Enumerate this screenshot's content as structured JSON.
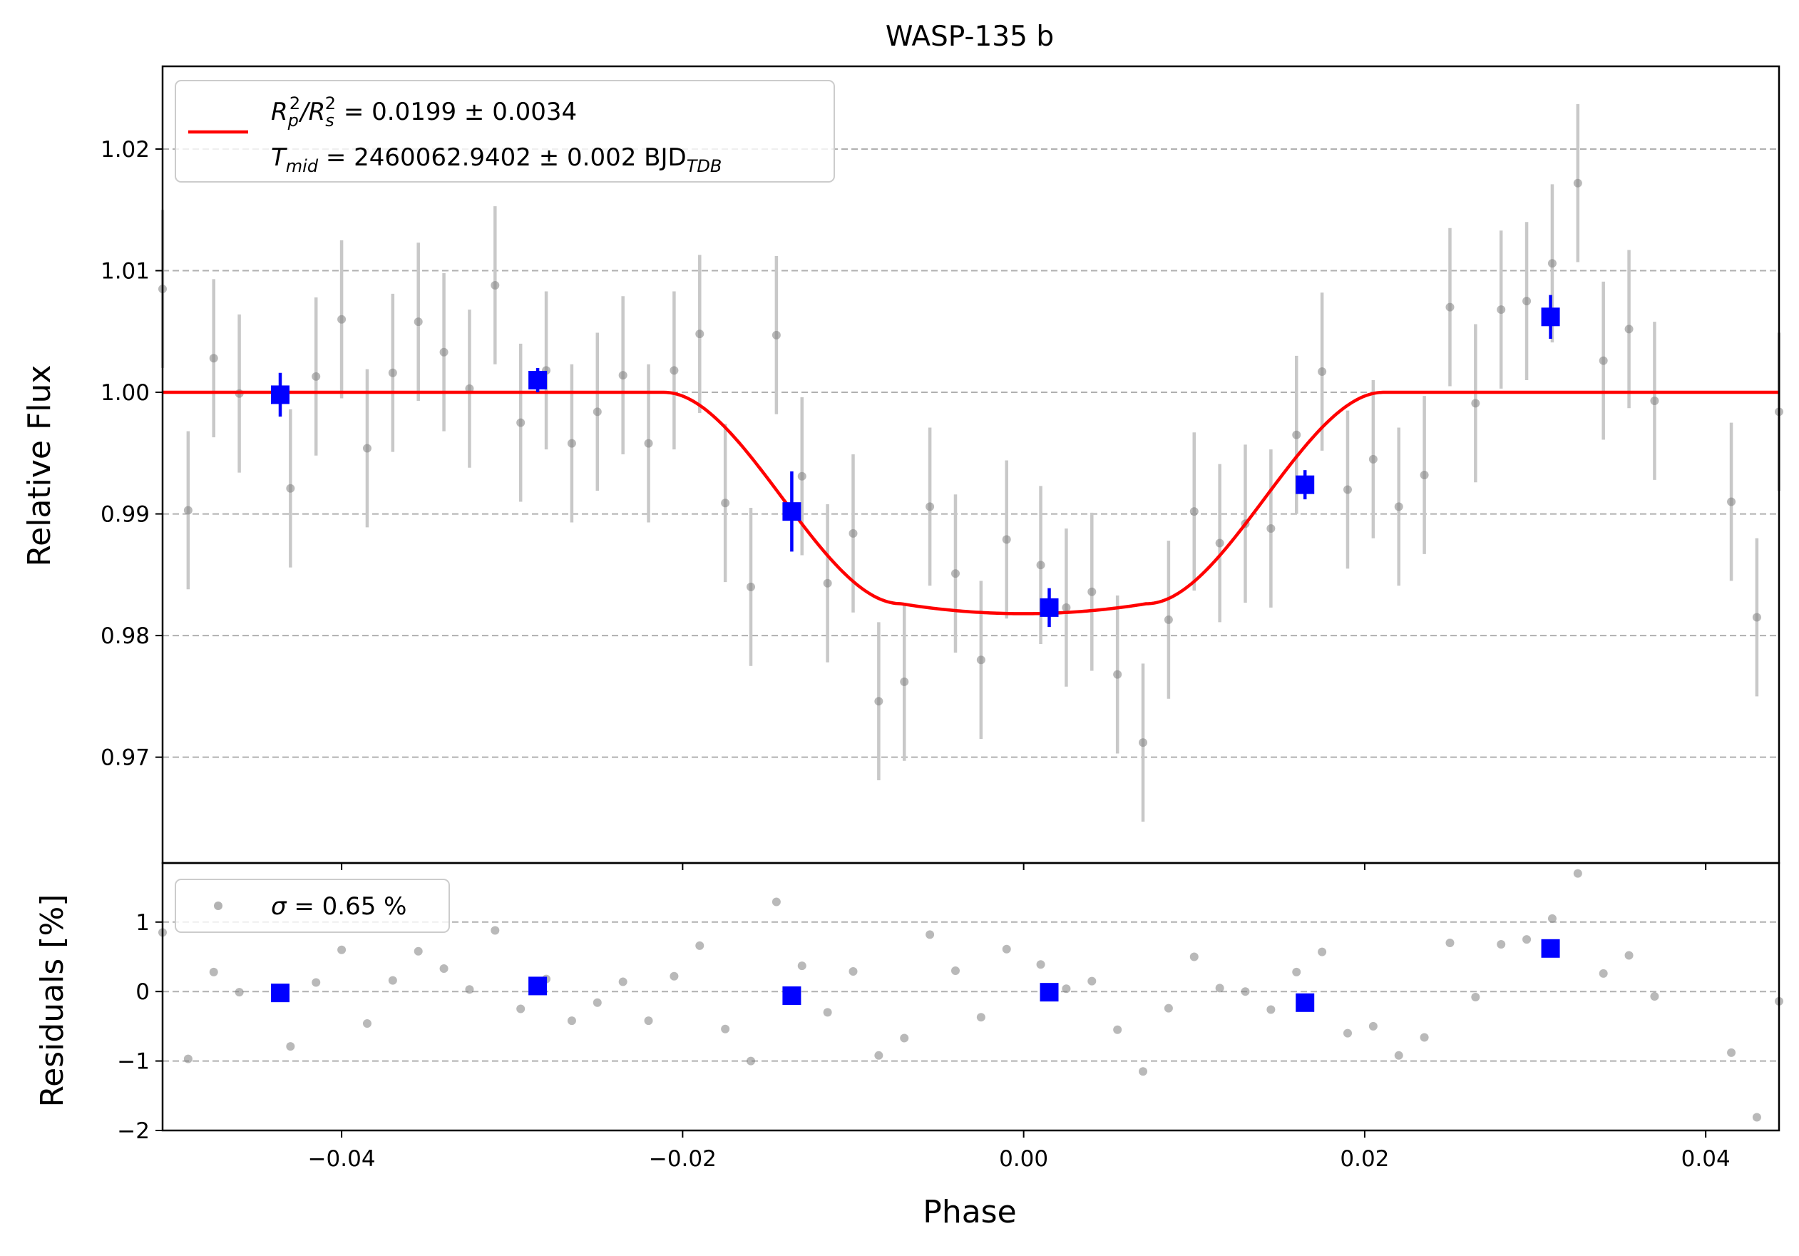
{
  "chart_data": [
    {
      "type": "scatter",
      "panel": "main",
      "title": "WASP-135 b",
      "xlabel": "",
      "ylabel": "Relative Flux",
      "xlim": [
        -0.0505,
        0.0443
      ],
      "ylim": [
        0.9613,
        1.0268
      ],
      "yticks": [
        0.97,
        0.98,
        0.99,
        1.0,
        1.01,
        1.02
      ],
      "ytick_labels": [
        "0.97",
        "0.98",
        "0.99",
        "1.00",
        "1.01",
        "1.02"
      ],
      "grid": "y-dashed",
      "legend_position": "top-left",
      "legend": {
        "line1_prefix": "R",
        "line1_sub1": "p",
        "line1_sup1": "2",
        "line1_slash": "/R",
        "line1_sub2": "s",
        "line1_sup2": "2",
        "line1_value": " = 0.0199 ± 0.0034",
        "line2_prefix": "T",
        "line2_sub": "mid",
        "line2_value": " = 2460062.9402 ± 0.002 BJD",
        "line2_unit_sub": "TDB"
      },
      "model_color": "#ff0000",
      "model": {
        "baseline": 1.0,
        "depth": 0.0182,
        "t_first_contact": -0.0211,
        "t_flat_start": -0.0072,
        "t_flat_end": 0.0072,
        "t_last_contact": 0.0211
      },
      "raw_color": "#808080",
      "raw_error_color": "#c8c8c8",
      "raw_points": [
        {
          "x": -0.0505,
          "y": 1.0085,
          "e": 0.0065
        },
        {
          "x": -0.049,
          "y": 0.9903,
          "e": 0.0065
        },
        {
          "x": -0.0475,
          "y": 1.0028,
          "e": 0.0065
        },
        {
          "x": -0.046,
          "y": 0.9999,
          "e": 0.0065
        },
        {
          "x": -0.043,
          "y": 0.9921,
          "e": 0.0065
        },
        {
          "x": -0.0415,
          "y": 1.0013,
          "e": 0.0065
        },
        {
          "x": -0.04,
          "y": 1.006,
          "e": 0.0065
        },
        {
          "x": -0.0385,
          "y": 0.9954,
          "e": 0.0065
        },
        {
          "x": -0.037,
          "y": 1.0016,
          "e": 0.0065
        },
        {
          "x": -0.0355,
          "y": 1.0058,
          "e": 0.0065
        },
        {
          "x": -0.034,
          "y": 1.0033,
          "e": 0.0065
        },
        {
          "x": -0.0325,
          "y": 1.0003,
          "e": 0.0065
        },
        {
          "x": -0.031,
          "y": 1.0088,
          "e": 0.0065
        },
        {
          "x": -0.0295,
          "y": 0.9975,
          "e": 0.0065
        },
        {
          "x": -0.028,
          "y": 1.0018,
          "e": 0.0065
        },
        {
          "x": -0.0265,
          "y": 0.9958,
          "e": 0.0065
        },
        {
          "x": -0.025,
          "y": 0.9984,
          "e": 0.0065
        },
        {
          "x": -0.0235,
          "y": 1.0014,
          "e": 0.0065
        },
        {
          "x": -0.022,
          "y": 0.9958,
          "e": 0.0065
        },
        {
          "x": -0.0205,
          "y": 1.0018,
          "e": 0.0065
        },
        {
          "x": -0.019,
          "y": 1.0048,
          "e": 0.0065
        },
        {
          "x": -0.0175,
          "y": 0.9909,
          "e": 0.0065
        },
        {
          "x": -0.016,
          "y": 0.984,
          "e": 0.0065
        },
        {
          "x": -0.0145,
          "y": 1.0047,
          "e": 0.0065
        },
        {
          "x": -0.013,
          "y": 0.9931,
          "e": 0.0065
        },
        {
          "x": -0.0115,
          "y": 0.9843,
          "e": 0.0065
        },
        {
          "x": -0.01,
          "y": 0.9884,
          "e": 0.0065
        },
        {
          "x": -0.0085,
          "y": 0.9746,
          "e": 0.0065
        },
        {
          "x": -0.007,
          "y": 0.9762,
          "e": 0.0065
        },
        {
          "x": -0.0055,
          "y": 0.9906,
          "e": 0.0065
        },
        {
          "x": -0.004,
          "y": 0.9851,
          "e": 0.0065
        },
        {
          "x": -0.0025,
          "y": 0.978,
          "e": 0.0065
        },
        {
          "x": -0.001,
          "y": 0.9879,
          "e": 0.0065
        },
        {
          "x": 0.001,
          "y": 0.9858,
          "e": 0.0065
        },
        {
          "x": 0.0025,
          "y": 0.9823,
          "e": 0.0065
        },
        {
          "x": 0.004,
          "y": 0.9836,
          "e": 0.0065
        },
        {
          "x": 0.0055,
          "y": 0.9768,
          "e": 0.0065
        },
        {
          "x": 0.007,
          "y": 0.9712,
          "e": 0.0065
        },
        {
          "x": 0.0085,
          "y": 0.9813,
          "e": 0.0065
        },
        {
          "x": 0.01,
          "y": 0.9902,
          "e": 0.0065
        },
        {
          "x": 0.0115,
          "y": 0.9876,
          "e": 0.0065
        },
        {
          "x": 0.013,
          "y": 0.9892,
          "e": 0.0065
        },
        {
          "x": 0.0145,
          "y": 0.9888,
          "e": 0.0065
        },
        {
          "x": 0.016,
          "y": 0.9965,
          "e": 0.0065
        },
        {
          "x": 0.0175,
          "y": 1.0017,
          "e": 0.0065
        },
        {
          "x": 0.019,
          "y": 0.992,
          "e": 0.0065
        },
        {
          "x": 0.0205,
          "y": 0.9945,
          "e": 0.0065
        },
        {
          "x": 0.022,
          "y": 0.9906,
          "e": 0.0065
        },
        {
          "x": 0.0235,
          "y": 0.9932,
          "e": 0.0065
        },
        {
          "x": 0.025,
          "y": 1.007,
          "e": 0.0065
        },
        {
          "x": 0.0265,
          "y": 0.9991,
          "e": 0.0065
        },
        {
          "x": 0.028,
          "y": 1.0068,
          "e": 0.0065
        },
        {
          "x": 0.0295,
          "y": 1.0075,
          "e": 0.0065
        },
        {
          "x": 0.031,
          "y": 1.0106,
          "e": 0.0065
        },
        {
          "x": 0.0325,
          "y": 1.0172,
          "e": 0.0065
        },
        {
          "x": 0.034,
          "y": 1.0026,
          "e": 0.0065
        },
        {
          "x": 0.0355,
          "y": 1.0052,
          "e": 0.0065
        },
        {
          "x": 0.037,
          "y": 0.9993,
          "e": 0.0065
        },
        {
          "x": 0.0415,
          "y": 0.991,
          "e": 0.0065
        },
        {
          "x": 0.043,
          "y": 0.9815,
          "e": 0.0065
        },
        {
          "x": 0.0443,
          "y": 0.9984,
          "e": 0.0065
        }
      ],
      "binned_color": "#0000ff",
      "binned_points": [
        {
          "x": -0.0436,
          "y": 0.9998,
          "e": 0.0018
        },
        {
          "x": -0.0285,
          "y": 1.001,
          "e": 0.001
        },
        {
          "x": -0.0136,
          "y": 0.9902,
          "e": 0.0033
        },
        {
          "x": 0.0015,
          "y": 0.9823,
          "e": 0.0016
        },
        {
          "x": 0.0165,
          "y": 0.9924,
          "e": 0.0012
        },
        {
          "x": 0.0309,
          "y": 1.0062,
          "e": 0.0018
        }
      ]
    },
    {
      "type": "scatter",
      "panel": "residuals",
      "xlabel": "Phase",
      "ylabel": "Residuals [%]",
      "xlim": [
        -0.0505,
        0.0443
      ],
      "ylim": [
        -2.0,
        1.85
      ],
      "xticks": [
        -0.04,
        -0.02,
        0.0,
        0.02,
        0.04
      ],
      "xtick_labels": [
        "−0.04",
        "−0.02",
        "0.00",
        "0.02",
        "0.04"
      ],
      "yticks": [
        -2,
        -1,
        0,
        1
      ],
      "ytick_labels": [
        "−2",
        "−1",
        "0",
        "1"
      ],
      "grid": "y-dashed",
      "legend_position": "top-left",
      "legend": {
        "sigma_symbol": "σ",
        "sigma_value": " = 0.65 %"
      },
      "raw_color": "#808080",
      "raw_points": [
        {
          "x": -0.0505,
          "y": 0.85
        },
        {
          "x": -0.049,
          "y": -0.97
        },
        {
          "x": -0.0475,
          "y": 0.28
        },
        {
          "x": -0.046,
          "y": -0.01
        },
        {
          "x": -0.043,
          "y": -0.79
        },
        {
          "x": -0.0415,
          "y": 0.13
        },
        {
          "x": -0.04,
          "y": 0.6
        },
        {
          "x": -0.0385,
          "y": -0.46
        },
        {
          "x": -0.037,
          "y": 0.16
        },
        {
          "x": -0.0355,
          "y": 0.58
        },
        {
          "x": -0.034,
          "y": 0.33
        },
        {
          "x": -0.0325,
          "y": 0.03
        },
        {
          "x": -0.031,
          "y": 0.88
        },
        {
          "x": -0.0295,
          "y": -0.25
        },
        {
          "x": -0.028,
          "y": 0.18
        },
        {
          "x": -0.0265,
          "y": -0.42
        },
        {
          "x": -0.025,
          "y": -0.16
        },
        {
          "x": -0.0235,
          "y": 0.14
        },
        {
          "x": -0.022,
          "y": -0.42
        },
        {
          "x": -0.0205,
          "y": 0.22
        },
        {
          "x": -0.019,
          "y": 0.66
        },
        {
          "x": -0.0175,
          "y": -0.54
        },
        {
          "x": -0.016,
          "y": -1.0
        },
        {
          "x": -0.0145,
          "y": 1.29
        },
        {
          "x": -0.013,
          "y": 0.37
        },
        {
          "x": -0.0115,
          "y": -0.3
        },
        {
          "x": -0.01,
          "y": 0.29
        },
        {
          "x": -0.0085,
          "y": -0.92
        },
        {
          "x": -0.007,
          "y": -0.67
        },
        {
          "x": -0.0055,
          "y": 0.82
        },
        {
          "x": -0.004,
          "y": 0.3
        },
        {
          "x": -0.0025,
          "y": -0.37
        },
        {
          "x": -0.001,
          "y": 0.61
        },
        {
          "x": 0.001,
          "y": 0.39
        },
        {
          "x": 0.0025,
          "y": 0.04
        },
        {
          "x": 0.004,
          "y": 0.15
        },
        {
          "x": 0.0055,
          "y": -0.55
        },
        {
          "x": 0.007,
          "y": -1.15
        },
        {
          "x": 0.0085,
          "y": -0.24
        },
        {
          "x": 0.01,
          "y": 0.5
        },
        {
          "x": 0.0115,
          "y": 0.05
        },
        {
          "x": 0.013,
          "y": 0.0
        },
        {
          "x": 0.0145,
          "y": -0.26
        },
        {
          "x": 0.016,
          "y": 0.28
        },
        {
          "x": 0.0175,
          "y": 0.57
        },
        {
          "x": 0.019,
          "y": -0.6
        },
        {
          "x": 0.0205,
          "y": -0.5
        },
        {
          "x": 0.022,
          "y": -0.92
        },
        {
          "x": 0.0235,
          "y": -0.66
        },
        {
          "x": 0.025,
          "y": 0.7
        },
        {
          "x": 0.0265,
          "y": -0.08
        },
        {
          "x": 0.028,
          "y": 0.68
        },
        {
          "x": 0.0295,
          "y": 0.75
        },
        {
          "x": 0.031,
          "y": 1.05
        },
        {
          "x": 0.0325,
          "y": 1.7
        },
        {
          "x": 0.034,
          "y": 0.26
        },
        {
          "x": 0.0355,
          "y": 0.52
        },
        {
          "x": 0.037,
          "y": -0.07
        },
        {
          "x": 0.0415,
          "y": -0.88
        },
        {
          "x": 0.043,
          "y": -1.81
        },
        {
          "x": 0.0443,
          "y": -0.14
        }
      ],
      "binned_color": "#0000ff",
      "binned_points": [
        {
          "x": -0.0436,
          "y": -0.02
        },
        {
          "x": -0.0285,
          "y": 0.08
        },
        {
          "x": -0.0136,
          "y": -0.06
        },
        {
          "x": 0.0015,
          "y": -0.01
        },
        {
          "x": 0.0165,
          "y": -0.16
        },
        {
          "x": 0.0309,
          "y": 0.62
        }
      ]
    }
  ]
}
